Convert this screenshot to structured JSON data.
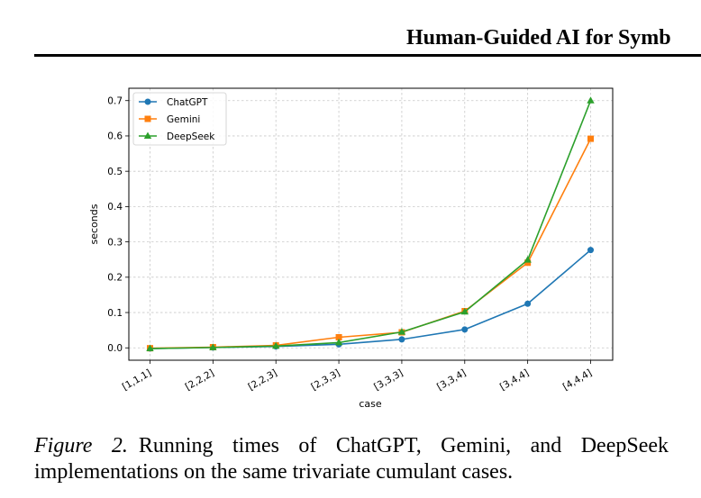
{
  "header": {
    "running_title": "Human-Guided AI for Symb"
  },
  "figure": {
    "caption_label": "Figure 2.",
    "caption_text": "Running times of ChatGPT, Gemini, and DeepSeek implementations on the same trivariate cumulant cases."
  },
  "chart_data": {
    "type": "line",
    "title": "",
    "xlabel": "case",
    "ylabel": "seconds",
    "categories": [
      "[1,1,1]",
      "[2,2,2]",
      "[2,2,3]",
      "[2,3,3]",
      "[3,3,3]",
      "[3,3,4]",
      "[3,4,4]",
      "[4,4,4]"
    ],
    "ylim": [
      -0.035,
      0.735
    ],
    "yticks": [
      "0.0",
      "0.1",
      "0.2",
      "0.3",
      "0.4",
      "0.5",
      "0.6",
      "0.7"
    ],
    "grid": true,
    "legend_position": "top-left",
    "series": [
      {
        "name": "ChatGPT",
        "color": "#1f77b4",
        "marker": "circle",
        "values": [
          -0.002,
          0.001,
          0.004,
          0.01,
          0.024,
          0.052,
          0.125,
          0.277
        ]
      },
      {
        "name": "Gemini",
        "color": "#ff7f0e",
        "marker": "square",
        "values": [
          -0.001,
          0.002,
          0.007,
          0.03,
          0.044,
          0.104,
          0.241,
          0.592
        ]
      },
      {
        "name": "DeepSeek",
        "color": "#2ca02c",
        "marker": "triangle",
        "values": [
          -0.002,
          0.001,
          0.005,
          0.015,
          0.045,
          0.102,
          0.249,
          0.7
        ]
      }
    ]
  }
}
